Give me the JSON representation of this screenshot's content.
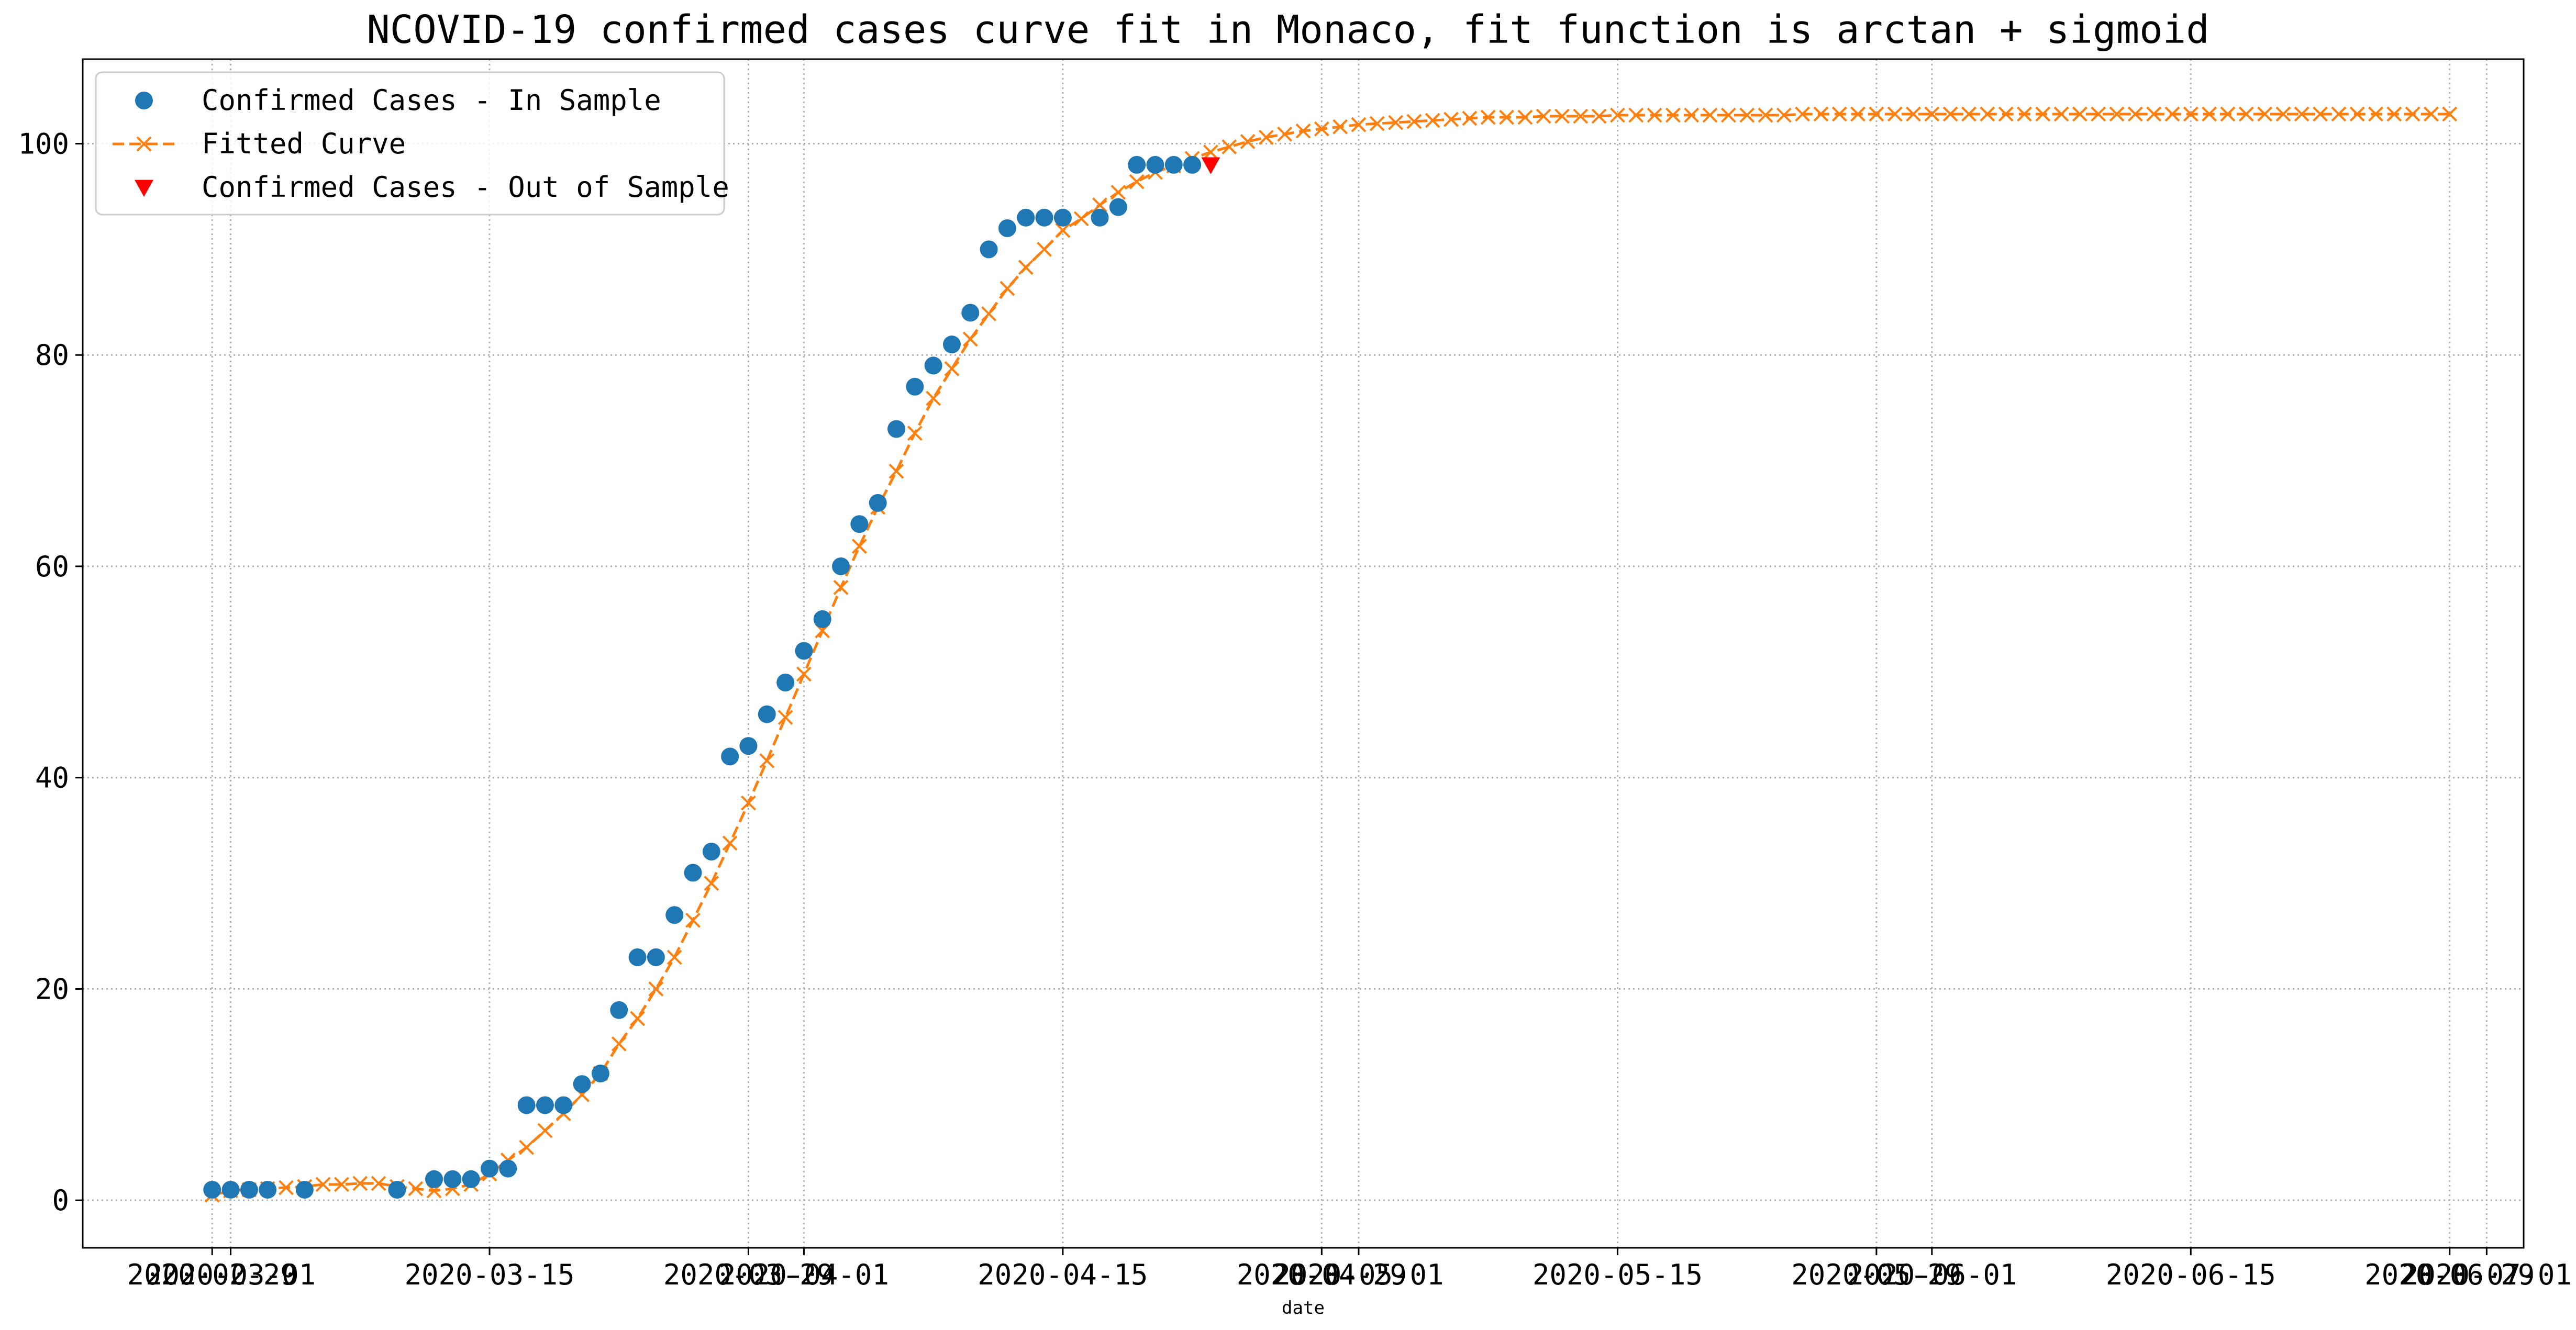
{
  "chart_data": {
    "type": "scatter",
    "title": "NCOVID-19 confirmed cases curve fit in Monaco, fit function is arctan + sigmoid",
    "xlabel": "date",
    "ylabel": "",
    "xlim": [
      "2020-02-22",
      "2020-07-03"
    ],
    "ylim": [
      -4.5,
      108
    ],
    "grid": true,
    "legend_position": "top-left",
    "x_ticks": [
      "2020-02-29",
      "2020-03-01",
      "2020-03-15",
      "2020-03-29",
      "2020-04-01",
      "2020-04-15",
      "2020-04-29",
      "2020-05-01",
      "2020-05-15",
      "2020-05-29",
      "2020-06-01",
      "2020-06-15",
      "2020-06-29",
      "2020-07-01"
    ],
    "y_ticks": [
      0,
      20,
      40,
      60,
      80,
      100
    ],
    "series": [
      {
        "name": "Confirmed Cases - In Sample",
        "marker": "circle",
        "color": "#1f77b4",
        "x": [
          "2020-02-29",
          "2020-03-01",
          "2020-03-02",
          "2020-03-03",
          "2020-03-05",
          "2020-03-10",
          "2020-03-12",
          "2020-03-13",
          "2020-03-14",
          "2020-03-15",
          "2020-03-16",
          "2020-03-17",
          "2020-03-18",
          "2020-03-19",
          "2020-03-20",
          "2020-03-21",
          "2020-03-22",
          "2020-03-23",
          "2020-03-24",
          "2020-03-25",
          "2020-03-26",
          "2020-03-27",
          "2020-03-28",
          "2020-03-29",
          "2020-03-30",
          "2020-03-31",
          "2020-04-01",
          "2020-04-02",
          "2020-04-03",
          "2020-04-04",
          "2020-04-05",
          "2020-04-06",
          "2020-04-07",
          "2020-04-08",
          "2020-04-09",
          "2020-04-10",
          "2020-04-11",
          "2020-04-12",
          "2020-04-13",
          "2020-04-14",
          "2020-04-15",
          "2020-04-17",
          "2020-04-18",
          "2020-04-19",
          "2020-04-20",
          "2020-04-21",
          "2020-04-22"
        ],
        "y": [
          1,
          1,
          1,
          1,
          1,
          1,
          2,
          2,
          2,
          3,
          3,
          9,
          9,
          9,
          11,
          12,
          18,
          23,
          23,
          27,
          31,
          33,
          42,
          43,
          46,
          49,
          52,
          55,
          60,
          64,
          66,
          73,
          77,
          79,
          81,
          84,
          90,
          92,
          93,
          93,
          93,
          93,
          94,
          98,
          98,
          98,
          98
        ]
      },
      {
        "name": "Fitted Curve",
        "marker": "x",
        "line": "dashed",
        "color": "#ff7f0e",
        "x_start": "2020-02-29",
        "x_step_days": 1,
        "y": [
          0.5,
          0.9,
          1.0,
          1.1,
          1.2,
          1.3,
          1.5,
          1.5,
          1.6,
          1.6,
          1.3,
          1.1,
          0.9,
          1.1,
          1.5,
          2.5,
          3.8,
          5.0,
          6.6,
          8.2,
          10.0,
          12.0,
          14.8,
          17.2,
          20.0,
          23.0,
          26.5,
          30.0,
          33.8,
          37.6,
          41.6,
          45.7,
          49.8,
          53.9,
          58.0,
          61.9,
          65.6,
          69.0,
          72.6,
          75.9,
          78.7,
          81.5,
          83.9,
          86.3,
          88.3,
          90.0,
          91.8,
          92.9,
          94.2,
          95.4,
          96.4,
          97.3,
          97.9,
          98.6,
          99.2,
          99.7,
          100.2,
          100.6,
          100.9,
          101.2,
          101.4,
          101.6,
          101.8,
          101.9,
          102.0,
          102.1,
          102.2,
          102.3,
          102.4,
          102.5,
          102.5,
          102.5,
          102.6,
          102.6,
          102.6,
          102.6,
          102.7,
          102.7,
          102.7,
          102.7,
          102.7,
          102.7,
          102.7,
          102.7,
          102.7,
          102.7,
          102.8,
          102.8,
          102.8,
          102.8,
          102.8,
          102.8,
          102.8,
          102.8,
          102.8,
          102.8,
          102.8,
          102.8,
          102.8,
          102.8,
          102.8,
          102.8,
          102.8,
          102.8,
          102.8,
          102.8,
          102.8,
          102.8,
          102.8,
          102.8,
          102.8,
          102.8,
          102.8,
          102.8,
          102.8,
          102.8,
          102.8,
          102.8,
          102.8,
          102.8,
          102.8,
          102.8
        ]
      },
      {
        "name": "Confirmed Cases - Out of Sample",
        "marker": "triangle-down",
        "color": "#ff0000",
        "x": [
          "2020-04-23"
        ],
        "y": [
          98
        ]
      }
    ]
  }
}
